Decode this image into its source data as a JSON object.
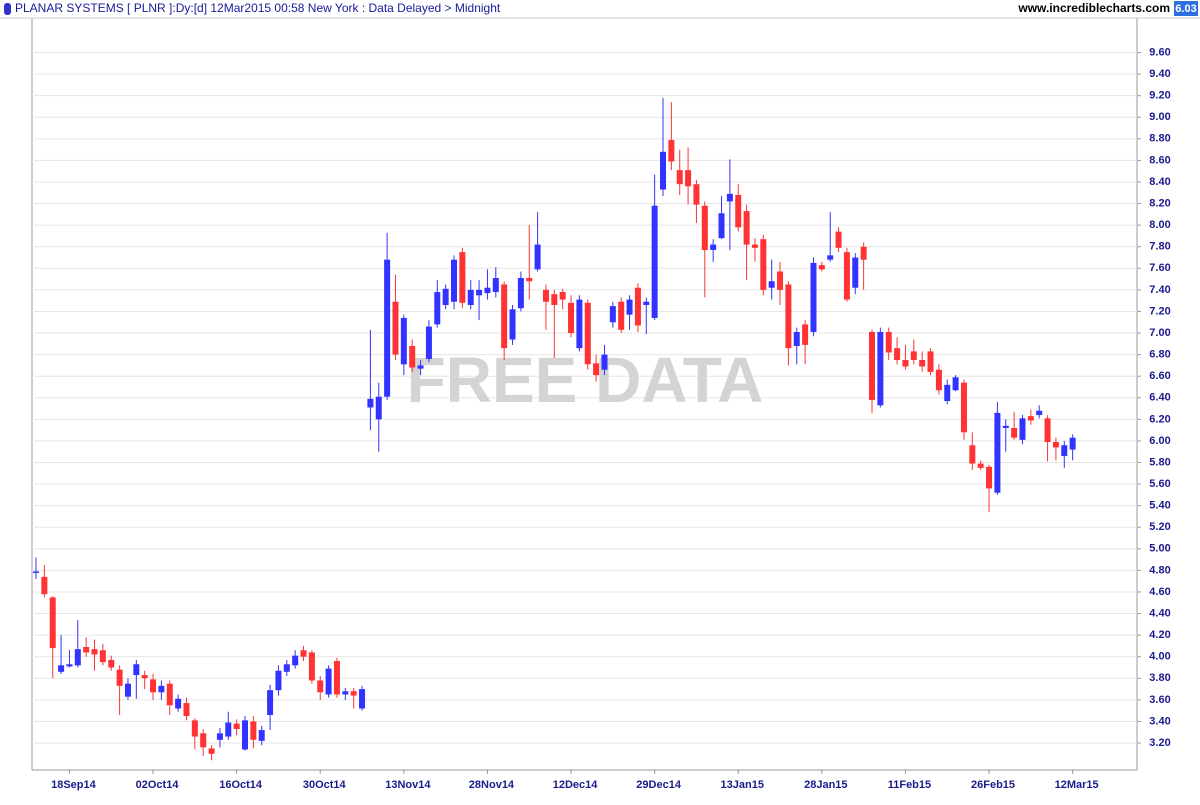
{
  "chart_data": {
    "type": "candlestick",
    "title": "PLANAR SYSTEMS [ PLNR ]:Dy:[d]  12Mar2015 00:58 New York : Data Delayed > Midnight",
    "source": "www.incrediblecharts.com",
    "watermark": "FREE DATA",
    "up_color": "#3333ff",
    "down_color": "#ff3333",
    "grid": true,
    "categories": [
      null,
      null,
      null,
      null,
      "18Sep14",
      null,
      null,
      null,
      null,
      null,
      null,
      null,
      null,
      null,
      "02Oct14",
      null,
      null,
      null,
      null,
      null,
      null,
      null,
      null,
      null,
      "16Oct14",
      null,
      null,
      null,
      null,
      null,
      null,
      null,
      null,
      null,
      "30Oct14",
      null,
      null,
      null,
      null,
      null,
      null,
      null,
      null,
      null,
      "13Nov14",
      null,
      null,
      null,
      null,
      null,
      null,
      null,
      null,
      null,
      "28Nov14",
      null,
      null,
      null,
      null,
      null,
      null,
      null,
      null,
      null,
      "12Dec14",
      null,
      null,
      null,
      null,
      null,
      null,
      null,
      null,
      null,
      "29Dec14",
      null,
      null,
      null,
      null,
      null,
      null,
      null,
      null,
      null,
      "13Jan15",
      null,
      null,
      null,
      null,
      null,
      null,
      null,
      null,
      null,
      "28Jan15",
      null,
      null,
      null,
      null,
      null,
      null,
      null,
      null,
      null,
      "11Feb15",
      null,
      null,
      null,
      null,
      null,
      null,
      null,
      null,
      null,
      "26Feb15",
      null,
      null,
      null,
      null,
      null,
      null,
      null,
      null,
      null,
      "12Mar15"
    ],
    "open": [
      4.78,
      4.74,
      4.55,
      3.86,
      3.91,
      3.92,
      4.09,
      4.07,
      4.06,
      3.97,
      3.88,
      3.63,
      3.83,
      3.83,
      3.79,
      3.67,
      3.75,
      3.52,
      3.57,
      3.41,
      3.29,
      3.15,
      3.23,
      3.26,
      3.38,
      3.14,
      3.4,
      3.22,
      3.46,
      3.69,
      3.86,
      3.92,
      4.06,
      4.04,
      3.78,
      3.65,
      3.96,
      3.65,
      3.68,
      3.52,
      6.31,
      6.2,
      6.41,
      7.29,
      6.71,
      6.88,
      6.67,
      6.76,
      7.08,
      7.26,
      7.29,
      7.75,
      7.26,
      7.35,
      7.37,
      7.38,
      7.45,
      6.94,
      7.23,
      7.51,
      7.59,
      7.4,
      7.36,
      7.38,
      7.28,
      6.86,
      7.28,
      6.72,
      6.66,
      7.1,
      7.29,
      7.17,
      7.42,
      7.26,
      7.14,
      8.33,
      8.79,
      8.51,
      8.51,
      8.38,
      8.18,
      7.77,
      7.88,
      8.22,
      8.28,
      8.13,
      7.82,
      7.87,
      7.42,
      7.57,
      7.45,
      6.88,
      7.08,
      7.01,
      7.63,
      7.68,
      7.94,
      7.75,
      7.42,
      7.8,
      7.01,
      6.33,
      7.01,
      6.86,
      6.75,
      6.83,
      6.75,
      6.83,
      6.66,
      6.37,
      6.47,
      6.54,
      5.96,
      5.79,
      5.76,
      5.52,
      6.12,
      6.12,
      6.01,
      6.23,
      6.24,
      6.21,
      5.99,
      5.86,
      5.92
    ],
    "high": [
      4.92,
      4.85,
      4.56,
      4.2,
      4.06,
      4.34,
      4.18,
      4.16,
      4.12,
      4.01,
      3.92,
      3.8,
      3.97,
      3.87,
      3.84,
      3.78,
      3.78,
      3.65,
      3.62,
      3.43,
      3.33,
      3.18,
      3.34,
      3.49,
      3.42,
      3.45,
      3.45,
      3.36,
      3.74,
      3.92,
      3.97,
      4.06,
      4.1,
      4.06,
      3.82,
      3.92,
      3.99,
      3.71,
      3.71,
      3.73,
      7.03,
      6.54,
      7.93,
      7.54,
      7.17,
      6.94,
      6.75,
      7.12,
      7.49,
      7.45,
      7.72,
      7.79,
      7.49,
      7.49,
      7.59,
      7.61,
      7.48,
      7.26,
      7.57,
      8.0,
      8.12,
      7.45,
      7.4,
      7.41,
      7.35,
      7.35,
      7.31,
      6.8,
      6.89,
      7.29,
      7.33,
      7.35,
      7.46,
      7.33,
      8.47,
      9.18,
      9.14,
      8.7,
      8.72,
      8.42,
      8.22,
      7.87,
      8.27,
      8.61,
      8.38,
      8.19,
      7.88,
      7.91,
      7.68,
      7.66,
      7.48,
      7.05,
      7.12,
      7.7,
      7.66,
      8.12,
      7.98,
      7.79,
      7.74,
      7.84,
      7.03,
      7.05,
      7.05,
      6.96,
      6.89,
      6.94,
      6.83,
      6.86,
      6.71,
      6.57,
      6.61,
      6.57,
      6.08,
      5.82,
      5.78,
      6.36,
      6.2,
      6.27,
      6.24,
      6.29,
      6.33,
      6.24,
      6.03,
      6.0,
      6.06
    ],
    "low": [
      4.72,
      4.55,
      3.8,
      3.84,
      3.9,
      3.9,
      4.0,
      3.87,
      3.92,
      3.87,
      3.46,
      3.6,
      3.61,
      3.7,
      3.6,
      3.6,
      3.46,
      3.49,
      3.41,
      3.14,
      3.08,
      3.04,
      3.16,
      3.23,
      3.27,
      3.13,
      3.15,
      3.18,
      3.32,
      3.64,
      3.82,
      3.89,
      3.96,
      3.75,
      3.6,
      3.62,
      3.62,
      3.6,
      3.52,
      3.5,
      6.1,
      5.9,
      6.38,
      6.75,
      6.61,
      6.64,
      6.61,
      6.73,
      7.05,
      7.22,
      7.22,
      7.23,
      7.22,
      7.12,
      7.31,
      7.33,
      6.75,
      6.89,
      7.2,
      7.31,
      7.57,
      7.03,
      6.77,
      7.22,
      6.96,
      6.83,
      6.66,
      6.55,
      6.61,
      7.05,
      7.0,
      7.03,
      7.01,
      6.99,
      7.12,
      8.27,
      8.51,
      8.28,
      8.19,
      8.02,
      7.33,
      7.66,
      7.87,
      7.77,
      7.94,
      7.49,
      7.66,
      7.35,
      7.31,
      7.26,
      6.7,
      6.71,
      6.71,
      6.97,
      7.57,
      7.66,
      7.75,
      7.29,
      7.36,
      7.4,
      6.26,
      6.31,
      6.75,
      6.71,
      6.66,
      6.71,
      6.64,
      6.61,
      6.43,
      6.34,
      6.46,
      6.01,
      5.73,
      5.73,
      5.34,
      5.5,
      5.9,
      6.01,
      5.97,
      6.15,
      6.21,
      5.81,
      5.82,
      5.75,
      5.82
    ],
    "close": [
      4.79,
      4.58,
      4.08,
      3.92,
      3.93,
      4.07,
      4.04,
      4.02,
      3.95,
      3.9,
      3.73,
      3.75,
      3.93,
      3.8,
      3.67,
      3.73,
      3.55,
      3.61,
      3.45,
      3.26,
      3.16,
      3.1,
      3.29,
      3.39,
      3.33,
      3.41,
      3.23,
      3.32,
      3.69,
      3.87,
      3.93,
      4.01,
      4.0,
      3.78,
      3.67,
      3.89,
      3.65,
      3.68,
      3.64,
      3.7,
      6.39,
      6.41,
      7.68,
      6.8,
      7.14,
      6.68,
      6.7,
      7.06,
      7.38,
      7.41,
      7.68,
      7.28,
      7.4,
      7.4,
      7.42,
      7.51,
      6.86,
      7.22,
      7.51,
      7.48,
      7.82,
      7.29,
      7.26,
      7.31,
      7.0,
      7.31,
      6.71,
      6.61,
      6.8,
      7.25,
      7.03,
      7.31,
      7.07,
      7.29,
      8.18,
      8.68,
      8.59,
      8.38,
      8.36,
      8.19,
      7.77,
      7.82,
      8.11,
      8.29,
      7.98,
      7.82,
      7.79,
      7.4,
      7.48,
      7.4,
      6.86,
      7.01,
      6.89,
      7.65,
      7.59,
      7.72,
      7.79,
      7.31,
      7.7,
      7.68,
      6.38,
      7.01,
      6.82,
      6.75,
      6.69,
      6.75,
      6.69,
      6.64,
      6.47,
      6.52,
      6.59,
      6.08,
      5.79,
      5.75,
      5.56,
      6.26,
      6.14,
      6.03,
      6.21,
      6.19,
      6.28,
      5.99,
      5.94,
      5.96,
      6.03
    ],
    "ylim": [
      2.95,
      9.92
    ],
    "yticks": [
      {
        "value": 3.2,
        "label": "3.20"
      },
      {
        "value": 3.4,
        "label": "3.40"
      },
      {
        "value": 3.6,
        "label": "3.60"
      },
      {
        "value": 3.8,
        "label": "3.80"
      },
      {
        "value": 4.0,
        "label": "4.00"
      },
      {
        "value": 4.2,
        "label": "4.20"
      },
      {
        "value": 4.4,
        "label": "4.40"
      },
      {
        "value": 4.6,
        "label": "4.60"
      },
      {
        "value": 4.8,
        "label": "4.80"
      },
      {
        "value": 5.0,
        "label": "5.00"
      },
      {
        "value": 5.2,
        "label": "5.20"
      },
      {
        "value": 5.4,
        "label": "5.40"
      },
      {
        "value": 5.6,
        "label": "5.60"
      },
      {
        "value": 5.8,
        "label": "5.80"
      },
      {
        "value": 6.0,
        "label": "6.00"
      },
      {
        "value": 6.2,
        "label": "6.20"
      },
      {
        "value": 6.4,
        "label": "6.40"
      },
      {
        "value": 6.6,
        "label": "6.60"
      },
      {
        "value": 6.8,
        "label": "6.80"
      },
      {
        "value": 7.0,
        "label": "7.00"
      },
      {
        "value": 7.2,
        "label": "7.20"
      },
      {
        "value": 7.4,
        "label": "7.40"
      },
      {
        "value": 7.6,
        "label": "7.60"
      },
      {
        "value": 7.8,
        "label": "7.80"
      },
      {
        "value": 8.0,
        "label": "8.00"
      },
      {
        "value": 8.2,
        "label": "8.20"
      },
      {
        "value": 8.4,
        "label": "8.40"
      },
      {
        "value": 8.6,
        "label": "8.60"
      },
      {
        "value": 8.8,
        "label": "8.80"
      },
      {
        "value": 9.0,
        "label": "9.00"
      },
      {
        "value": 9.2,
        "label": "9.20"
      },
      {
        "value": 9.4,
        "label": "9.40"
      },
      {
        "value": 9.6,
        "label": "9.60"
      }
    ]
  }
}
